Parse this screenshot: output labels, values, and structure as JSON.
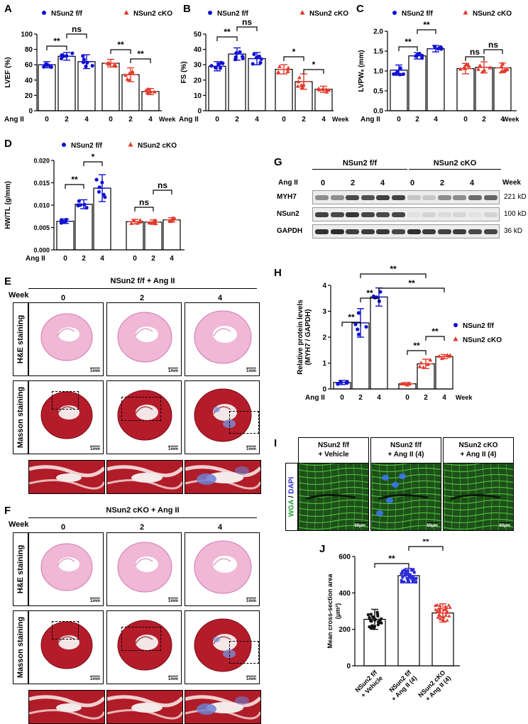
{
  "panels": {
    "A": "A",
    "B": "B",
    "C": "C",
    "D": "D",
    "E": "E",
    "F": "F",
    "G": "G",
    "H": "H",
    "I": "I",
    "J": "J"
  },
  "legend": {
    "ff": "NSun2 f/f",
    "cko": "NSun2 cKO"
  },
  "axis_common": {
    "angii": "Ang II",
    "week": "Week"
  },
  "colors": {
    "ff": "#1010d0",
    "cko": "#e23a2c"
  },
  "chart_data": [
    {
      "id": "A",
      "type": "bar",
      "ylabel": "LVEF (%)",
      "ylim": [
        0,
        100
      ],
      "yticks": [
        0,
        20,
        40,
        60,
        80,
        100
      ],
      "categories": [
        "0",
        "2",
        "4",
        "0",
        "2",
        "4"
      ],
      "groups": [
        "ff",
        "ff",
        "ff",
        "cko",
        "cko",
        "cko"
      ],
      "values": [
        60,
        71,
        64,
        62,
        47,
        25
      ],
      "sd": [
        4,
        5,
        9,
        5,
        9,
        4
      ],
      "sig": [
        {
          "a": 0,
          "b": 1,
          "label": "**"
        },
        {
          "a": 1,
          "b": 2,
          "label": "ns"
        },
        {
          "a": 3,
          "b": 4,
          "label": "**"
        },
        {
          "a": 4,
          "b": 5,
          "label": "**"
        }
      ]
    },
    {
      "id": "B",
      "type": "bar",
      "ylabel": "FS (%)",
      "ylim": [
        0,
        50
      ],
      "yticks": [
        0,
        10,
        20,
        30,
        40,
        50
      ],
      "categories": [
        "0",
        "2",
        "4",
        "0",
        "2",
        "4"
      ],
      "groups": [
        "ff",
        "ff",
        "ff",
        "cko",
        "cko",
        "cko"
      ],
      "values": [
        29,
        37,
        34,
        27,
        19,
        14
      ],
      "sd": [
        3,
        4,
        4,
        3,
        5,
        2
      ],
      "sig": [
        {
          "a": 0,
          "b": 1,
          "label": "**"
        },
        {
          "a": 1,
          "b": 2,
          "label": "ns"
        },
        {
          "a": 3,
          "b": 4,
          "label": "*"
        },
        {
          "a": 4,
          "b": 5,
          "label": "*"
        }
      ]
    },
    {
      "id": "C",
      "type": "bar",
      "ylabel": "LVPWₛ (mm)",
      "ylim": [
        0,
        2.0
      ],
      "yticks": [
        "0.0",
        "0.5",
        "1.0",
        "1.5",
        "2.0"
      ],
      "categories": [
        "0",
        "2",
        "4",
        "0",
        "2",
        "4"
      ],
      "groups": [
        "ff",
        "ff",
        "ff",
        "cko",
        "cko",
        "cko"
      ],
      "values": [
        1.02,
        1.38,
        1.56,
        1.06,
        1.09,
        1.08
      ],
      "sd": [
        0.13,
        0.08,
        0.08,
        0.13,
        0.14,
        0.12
      ],
      "sig": [
        {
          "a": 0,
          "b": 1,
          "label": "**"
        },
        {
          "a": 1,
          "b": 2,
          "label": "**"
        },
        {
          "a": 3,
          "b": 4,
          "label": "ns"
        },
        {
          "a": 4,
          "b": 5,
          "label": "ns"
        }
      ]
    },
    {
      "id": "D",
      "type": "bar",
      "ylabel": "HW/TL (g/mm)",
      "ylim": [
        0,
        0.02
      ],
      "yticks": [
        "0.000",
        "0.005",
        "0.010",
        "0.015",
        "0.020"
      ],
      "categories": [
        "0",
        "2",
        "4",
        "0",
        "2",
        "4"
      ],
      "groups": [
        "ff",
        "ff",
        "ff",
        "cko",
        "cko",
        "cko"
      ],
      "values": [
        0.0064,
        0.0102,
        0.0138,
        0.0063,
        0.0062,
        0.0067
      ],
      "sd": [
        0.0005,
        0.001,
        0.003,
        0.0005,
        0.0005,
        0.0005
      ],
      "sig": [
        {
          "a": 0,
          "b": 1,
          "label": "**"
        },
        {
          "a": 1,
          "b": 2,
          "label": "*"
        },
        {
          "a": 3,
          "b": 4,
          "label": "ns"
        },
        {
          "a": 4,
          "b": 5,
          "label": "ns"
        }
      ]
    },
    {
      "id": "H",
      "type": "bar",
      "ylabel": "Relative protein levels (MYH7 / GAPDH)",
      "ylim": [
        0,
        4
      ],
      "yticks": [
        0,
        1,
        2,
        3,
        4
      ],
      "categories": [
        "0",
        "2",
        "4",
        "0",
        "2",
        "4"
      ],
      "groups": [
        "ff",
        "ff",
        "ff",
        "cko",
        "cko",
        "cko"
      ],
      "values": [
        0.25,
        2.55,
        3.55,
        0.2,
        0.97,
        1.25
      ],
      "sd": [
        0.08,
        0.55,
        0.35,
        0.05,
        0.18,
        0.08
      ],
      "sig": [
        {
          "a": 0,
          "b": 1,
          "label": "**"
        },
        {
          "a": 1,
          "b": 2,
          "label": "**"
        },
        {
          "a": 4,
          "b": 5,
          "label": "**"
        },
        {
          "a": 3,
          "b": 4,
          "label": "**"
        },
        {
          "a": 1,
          "b": 4,
          "label": "**"
        },
        {
          "a": 2,
          "b": 5,
          "label": "**"
        }
      ]
    },
    {
      "id": "J",
      "type": "bar",
      "ylabel": "Mean cross-section area (μm²)",
      "ylim": [
        0,
        600
      ],
      "yticks": [
        0,
        200,
        400,
        600
      ],
      "categories": [
        "NSun2 f/f + Vehicle",
        "NSun2 f/f + Ang II (4)",
        "NSun2 cKO + Ang II (4)"
      ],
      "values": [
        255,
        495,
        290
      ],
      "sd": [
        55,
        40,
        50
      ],
      "sig": [
        {
          "a": 0,
          "b": 1,
          "label": "**"
        },
        {
          "a": 1,
          "b": 2,
          "label": "**"
        }
      ]
    }
  ],
  "western": {
    "header": {
      "ff": "NSun2 f/f",
      "cko": "NSun2 cKO"
    },
    "angii": "Ang II",
    "week": "Week",
    "weeks": [
      "0",
      "2",
      "4",
      "0",
      "2",
      "4"
    ],
    "bands": [
      {
        "name": "MYH7",
        "size": "221 kD"
      },
      {
        "name": "NSun2",
        "size": "100 kD"
      },
      {
        "name": "GAPDH",
        "size": "36 kD"
      }
    ]
  },
  "histology": {
    "E_title": "NSun2 f/f + Ang II",
    "F_title": "NSun2 cKO + Ang II",
    "week": "Week",
    "weeks": [
      "0",
      "2",
      "4"
    ],
    "rows": [
      "H&E staining",
      "Masson staining"
    ],
    "scale": "1mm"
  },
  "wga": {
    "heads": [
      "NSun2 f/f\n+ Vehicle",
      "NSun2 f/f\n+ Ang II (4)",
      "NSun2 cKO\n+ Ang II (4)"
    ],
    "side_wga": "WGA",
    "side_sep": " / ",
    "side_dapi": "DAPI",
    "scale": "50μm"
  }
}
